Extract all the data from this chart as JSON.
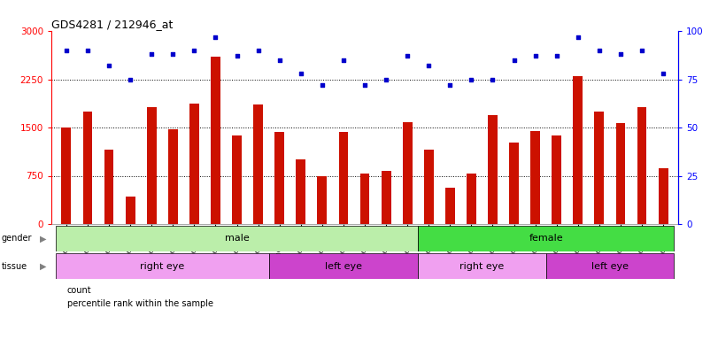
{
  "title": "GDS4281 / 212946_at",
  "samples": [
    "GSM685471",
    "GSM685472",
    "GSM685473",
    "GSM685601",
    "GSM685650",
    "GSM685651",
    "GSM686961",
    "GSM686962",
    "GSM686988",
    "GSM686990",
    "GSM685522",
    "GSM685523",
    "GSM685603",
    "GSM686963",
    "GSM686986",
    "GSM686989",
    "GSM686991",
    "GSM685474",
    "GSM685602",
    "GSM686984",
    "GSM686985",
    "GSM686987",
    "GSM687004",
    "GSM685470",
    "GSM685475",
    "GSM685652",
    "GSM687001",
    "GSM687002",
    "GSM687003"
  ],
  "counts": [
    1500,
    1750,
    1150,
    430,
    1820,
    1470,
    1870,
    2600,
    1380,
    1860,
    1430,
    1000,
    740,
    1430,
    780,
    820,
    1580,
    1150,
    570,
    780,
    1690,
    1260,
    1450,
    1380,
    2300,
    1750,
    1570,
    1820,
    870
  ],
  "percentiles": [
    90,
    90,
    82,
    75,
    88,
    88,
    90,
    97,
    87,
    90,
    85,
    78,
    72,
    85,
    72,
    75,
    87,
    82,
    72,
    75,
    75,
    85,
    87,
    87,
    97,
    90,
    88,
    90,
    78
  ],
  "gender_groups": [
    {
      "label": "male",
      "start": 0,
      "end": 16,
      "color": "#BBEEAA"
    },
    {
      "label": "female",
      "start": 17,
      "end": 28,
      "color": "#44DD44"
    }
  ],
  "tissue_groups": [
    {
      "label": "right eye",
      "start": 0,
      "end": 9,
      "color": "#F0A0F0"
    },
    {
      "label": "left eye",
      "start": 10,
      "end": 16,
      "color": "#CC44CC"
    },
    {
      "label": "right eye",
      "start": 17,
      "end": 22,
      "color": "#F0A0F0"
    },
    {
      "label": "left eye",
      "start": 23,
      "end": 28,
      "color": "#CC44CC"
    }
  ],
  "bar_color": "#CC1100",
  "dot_color": "#0000CC",
  "ylim_left": [
    0,
    3000
  ],
  "ylim_right": [
    0,
    100
  ],
  "yticks_left": [
    0,
    750,
    1500,
    2250,
    3000
  ],
  "yticks_right": [
    0,
    25,
    50,
    75,
    100
  ],
  "grid_values": [
    750,
    1500,
    2250
  ],
  "legend_items": [
    {
      "color": "#CC1100",
      "label": "count"
    },
    {
      "color": "#0000CC",
      "label": "percentile rank within the sample"
    }
  ]
}
